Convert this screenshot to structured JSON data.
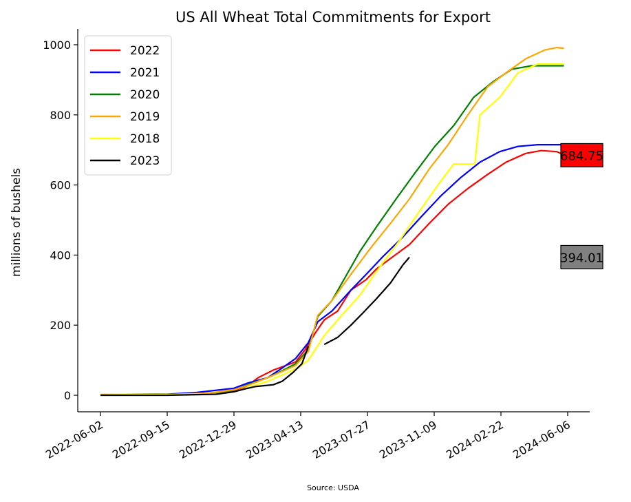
{
  "chart_data": {
    "type": "line",
    "title": "US All Wheat Total Commitments for Export",
    "ylabel": "millions of bushels",
    "xlabel": "",
    "source": "Source: USDA",
    "ylim": [
      -50,
      1040
    ],
    "yticks": [
      0,
      200,
      400,
      600,
      800,
      1000
    ],
    "xlim": [
      "2022-05-20",
      "2024-06-15"
    ],
    "xticks": [
      "2022-06-02",
      "2022-09-15",
      "2022-12-29",
      "2023-04-13",
      "2023-07-27",
      "2023-11-09",
      "2024-02-22",
      "2024-06-06"
    ],
    "grid": false,
    "legend_position": "top-left",
    "series": [
      {
        "name": "2022",
        "color": "#ff0000",
        "points": [
          [
            "2022-06-02",
            2
          ],
          [
            "2022-09-15",
            2
          ],
          [
            "2022-11-20",
            5
          ],
          [
            "2022-12-29",
            12
          ],
          [
            "2023-01-20",
            28
          ],
          [
            "2023-02-05",
            50
          ],
          [
            "2023-03-01",
            72
          ],
          [
            "2023-04-05",
            95
          ],
          [
            "2023-04-20",
            130
          ],
          [
            "2023-05-05",
            175
          ],
          [
            "2023-05-20",
            215
          ],
          [
            "2023-06-10",
            240
          ],
          [
            "2023-07-01",
            300
          ],
          [
            "2023-07-25",
            330
          ],
          [
            "2023-08-10",
            360
          ],
          [
            "2023-09-01",
            390
          ],
          [
            "2023-10-01",
            430
          ],
          [
            "2023-11-01",
            490
          ],
          [
            "2023-12-01",
            545
          ],
          [
            "2024-01-01",
            590
          ],
          [
            "2024-02-01",
            630
          ],
          [
            "2024-03-01",
            665
          ],
          [
            "2024-04-01",
            690
          ],
          [
            "2024-04-25",
            698
          ],
          [
            "2024-05-20",
            695
          ],
          [
            "2024-05-31",
            685
          ]
        ]
      },
      {
        "name": "2021",
        "color": "#0000ff",
        "points": [
          [
            "2022-06-02",
            1
          ],
          [
            "2022-09-15",
            3
          ],
          [
            "2022-11-01",
            8
          ],
          [
            "2022-12-29",
            20
          ],
          [
            "2023-01-20",
            35
          ],
          [
            "2023-02-20",
            50
          ],
          [
            "2023-03-15",
            78
          ],
          [
            "2023-04-05",
            105
          ],
          [
            "2023-04-25",
            150
          ],
          [
            "2023-05-10",
            210
          ],
          [
            "2023-06-01",
            240
          ],
          [
            "2023-07-01",
            300
          ],
          [
            "2023-07-25",
            345
          ],
          [
            "2023-08-20",
            395
          ],
          [
            "2023-09-20",
            450
          ],
          [
            "2023-10-20",
            510
          ],
          [
            "2023-11-20",
            570
          ],
          [
            "2023-12-20",
            620
          ],
          [
            "2024-01-20",
            665
          ],
          [
            "2024-02-20",
            695
          ],
          [
            "2024-03-20",
            710
          ],
          [
            "2024-04-20",
            715
          ],
          [
            "2024-05-31",
            715
          ]
        ]
      },
      {
        "name": "2020",
        "color": "#008000",
        "points": [
          [
            "2022-06-02",
            1
          ],
          [
            "2022-09-15",
            2
          ],
          [
            "2022-11-20",
            5
          ],
          [
            "2022-12-29",
            15
          ],
          [
            "2023-01-20",
            30
          ],
          [
            "2023-02-20",
            50
          ],
          [
            "2023-03-15",
            70
          ],
          [
            "2023-04-05",
            90
          ],
          [
            "2023-04-25",
            130
          ],
          [
            "2023-05-10",
            225
          ],
          [
            "2023-06-01",
            270
          ],
          [
            "2023-06-20",
            330
          ],
          [
            "2023-07-15",
            410
          ],
          [
            "2023-08-10",
            480
          ],
          [
            "2023-09-10",
            560
          ],
          [
            "2023-10-10",
            635
          ],
          [
            "2023-11-10",
            710
          ],
          [
            "2023-12-10",
            770
          ],
          [
            "2024-01-10",
            850
          ],
          [
            "2024-02-10",
            895
          ],
          [
            "2024-03-10",
            930
          ],
          [
            "2024-04-10",
            940
          ],
          [
            "2024-05-31",
            940
          ]
        ]
      },
      {
        "name": "2019",
        "color": "#ffa500",
        "points": [
          [
            "2022-06-02",
            1
          ],
          [
            "2022-09-15",
            2
          ],
          [
            "2022-11-20",
            6
          ],
          [
            "2022-12-29",
            16
          ],
          [
            "2023-01-20",
            28
          ],
          [
            "2023-02-20",
            50
          ],
          [
            "2023-03-15",
            68
          ],
          [
            "2023-04-05",
            85
          ],
          [
            "2023-04-25",
            125
          ],
          [
            "2023-05-10",
            228
          ],
          [
            "2023-06-01",
            270
          ],
          [
            "2023-07-01",
            345
          ],
          [
            "2023-08-01",
            420
          ],
          [
            "2023-09-01",
            490
          ],
          [
            "2023-10-01",
            560
          ],
          [
            "2023-11-01",
            645
          ],
          [
            "2023-12-01",
            715
          ],
          [
            "2024-01-01",
            800
          ],
          [
            "2024-02-01",
            880
          ],
          [
            "2024-03-01",
            920
          ],
          [
            "2024-04-01",
            960
          ],
          [
            "2024-05-01",
            985
          ],
          [
            "2024-05-20",
            992
          ],
          [
            "2024-05-31",
            990
          ]
        ]
      },
      {
        "name": "2018",
        "color": "#ffff00",
        "points": [
          [
            "2022-06-02",
            1
          ],
          [
            "2022-09-15",
            2
          ],
          [
            "2022-12-01",
            4
          ],
          [
            "2022-12-29",
            10
          ],
          [
            "2023-01-20",
            22
          ],
          [
            "2023-02-20",
            40
          ],
          [
            "2023-03-20",
            62
          ],
          [
            "2023-04-10",
            80
          ],
          [
            "2023-04-25",
            100
          ],
          [
            "2023-05-20",
            170
          ],
          [
            "2023-06-15",
            225
          ],
          [
            "2023-07-15",
            285
          ],
          [
            "2023-08-15",
            365
          ],
          [
            "2023-09-15",
            440
          ],
          [
            "2023-10-15",
            520
          ],
          [
            "2023-11-15",
            600
          ],
          [
            "2023-12-10",
            660
          ],
          [
            "2024-01-12",
            660
          ],
          [
            "2024-01-20",
            800
          ],
          [
            "2024-02-20",
            850
          ],
          [
            "2024-03-20",
            920
          ],
          [
            "2024-04-20",
            945
          ],
          [
            "2024-05-31",
            945
          ]
        ]
      },
      {
        "name": "2023",
        "color": "#000000",
        "points": [
          [
            "2022-06-02",
            0
          ],
          [
            "2022-09-15",
            0
          ],
          [
            "2022-12-01",
            3
          ],
          [
            "2022-12-29",
            10
          ],
          [
            "2023-01-15",
            18
          ],
          [
            "2023-02-01",
            25
          ],
          [
            "2023-03-01",
            30
          ],
          [
            "2023-03-15",
            40
          ],
          [
            "2023-04-01",
            65
          ],
          [
            "2023-04-15",
            90
          ],
          [
            "2023-04-25",
            140
          ],
          null,
          [
            "2023-05-20",
            145
          ],
          [
            "2023-06-10",
            165
          ],
          [
            "2023-07-01",
            200
          ],
          [
            "2023-07-20",
            235
          ],
          [
            "2023-08-10",
            275
          ],
          [
            "2023-09-01",
            320
          ],
          [
            "2023-09-20",
            370
          ],
          [
            "2023-10-01",
            394
          ]
        ]
      }
    ],
    "callouts": [
      {
        "label": "684.75",
        "value": 684.75,
        "color": "#ff0000"
      },
      {
        "label": "394.01",
        "value": 394.01,
        "color": "#808080"
      }
    ]
  }
}
